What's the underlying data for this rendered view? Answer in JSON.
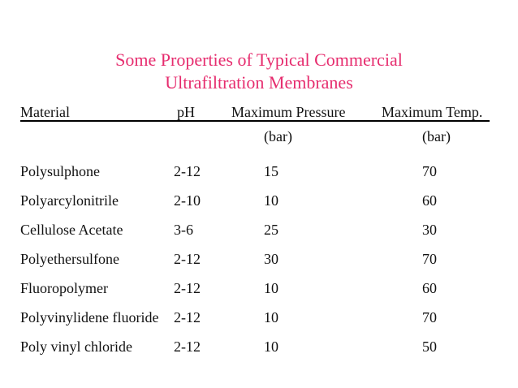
{
  "title": {
    "line1": "Some Properties of Typical Commercial",
    "line2": "Ultrafiltration Membranes",
    "color": "#e62c6e"
  },
  "table": {
    "headers": {
      "material": "Material",
      "ph": "pH",
      "pressure": "Maximum Pressure",
      "temp": "Maximum Temp."
    },
    "subheaders": {
      "pressure_unit": "(bar)",
      "temp_unit": "(bar)"
    },
    "rows": [
      {
        "material": "Polysulphone",
        "ph": "2-12",
        "pressure": "15",
        "temp": "70"
      },
      {
        "material": "Polyarcylonitrile",
        "ph": "2-10",
        "pressure": "10",
        "temp": "60"
      },
      {
        "material": "Cellulose Acetate",
        "ph": "3-6",
        "pressure": "25",
        "temp": "30"
      },
      {
        "material": "Polyethersulfone",
        "ph": "2-12",
        "pressure": "30",
        "temp": "70"
      },
      {
        "material": "Fluoropolymer",
        "ph": "2-12",
        "pressure": "10",
        "temp": "60"
      },
      {
        "material": "Polyvinylidene fluoride",
        "ph": "2-12",
        "pressure": "10",
        "temp": "70"
      },
      {
        "material": "Poly vinyl chloride",
        "ph": "2-12",
        "pressure": "10",
        "temp": "50"
      }
    ]
  }
}
